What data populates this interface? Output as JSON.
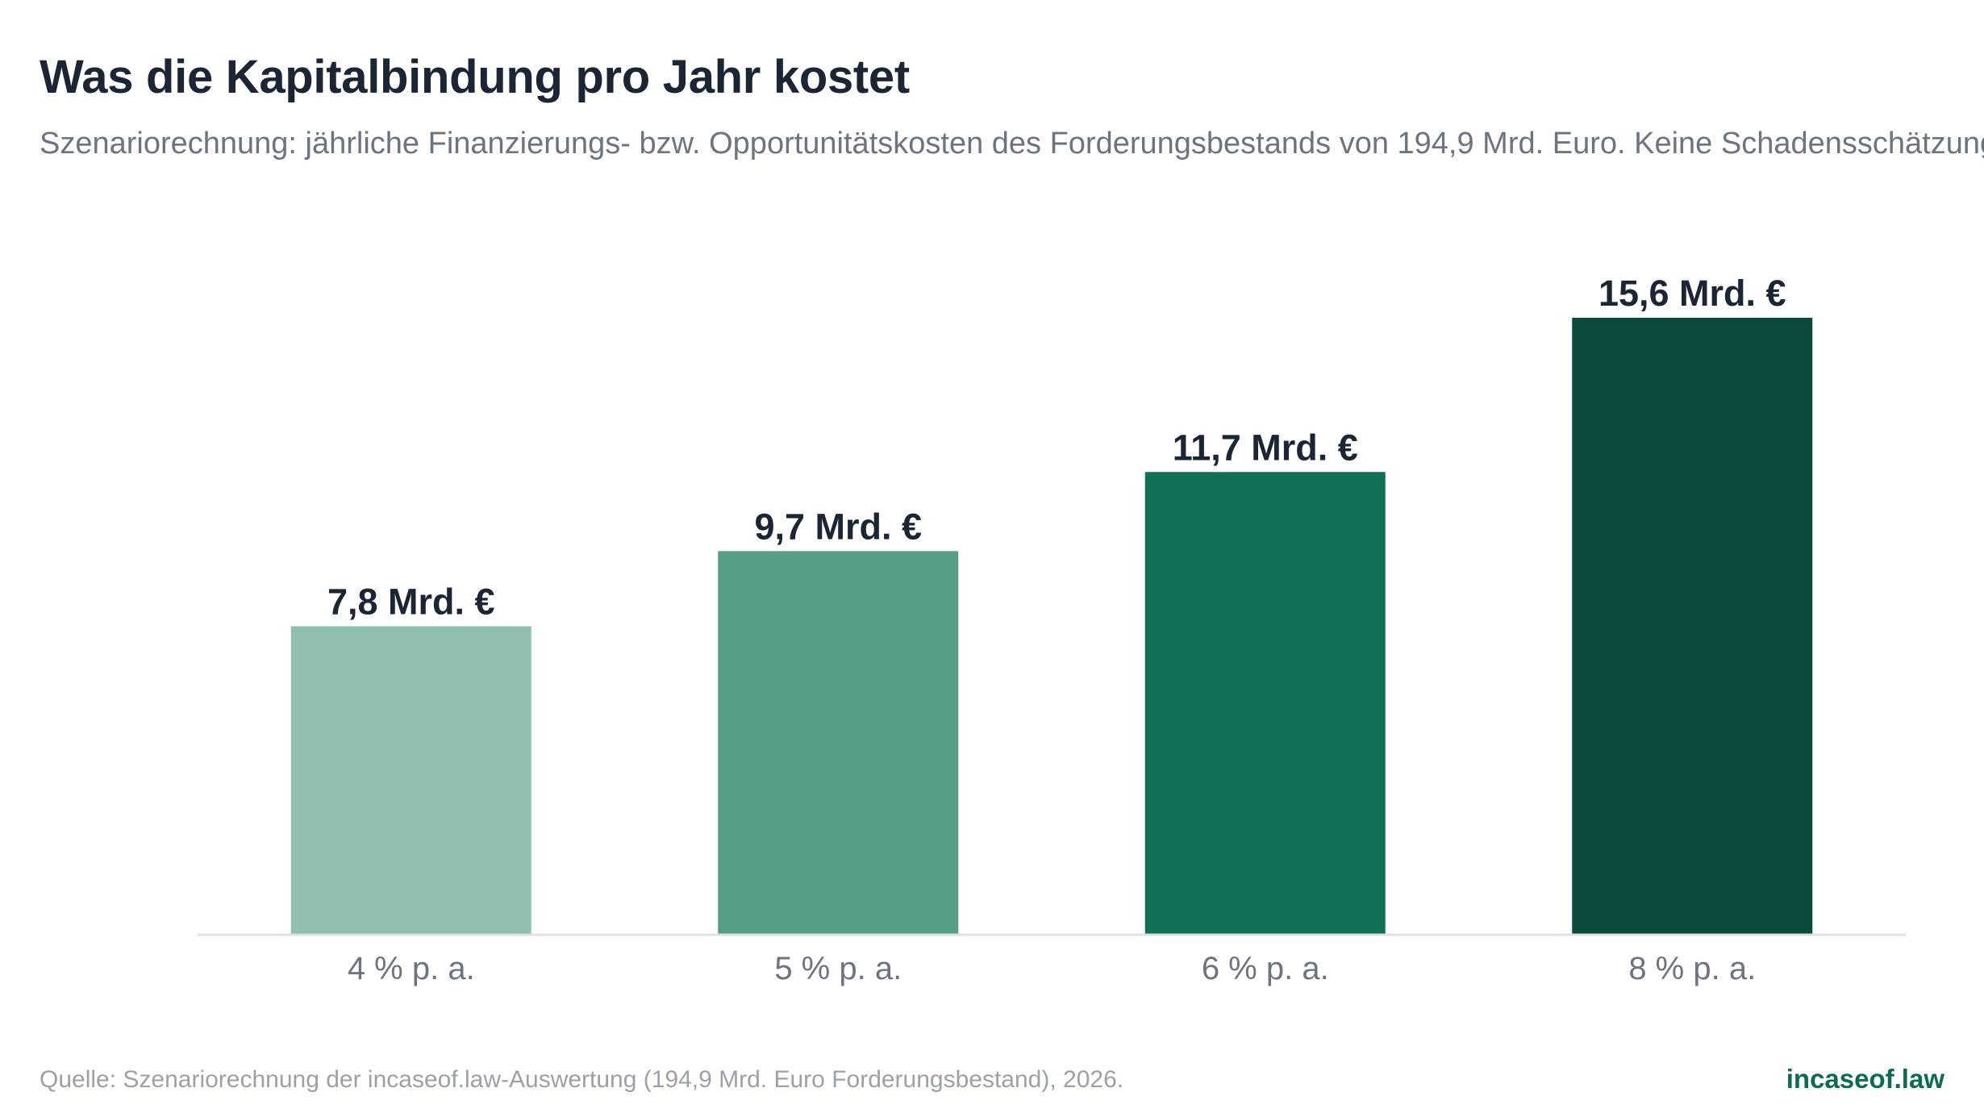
{
  "title": "Was die Kapitalbindung pro Jahr kostet",
  "subtitle": "Szenariorechnung: jährliche Finanzierungs- bzw. Opportunitätskosten des Forderungsbestands von 194,9 Mrd. Euro. Keine Schadensschätzung.",
  "source": "Quelle: Szenariorechnung der incaseof.law-Auswertung (194,9 Mrd. Euro Forderungsbestand), 2026.",
  "brand": "incaseof.law",
  "chart_data": {
    "type": "bar",
    "categories": [
      "4 % p. a.",
      "5 % p. a.",
      "6 % p. a.",
      "8 % p. a."
    ],
    "values": [
      7.8,
      9.7,
      11.7,
      15.6
    ],
    "data_labels": [
      "7,8 Mrd. €",
      "9,7 Mrd. €",
      "11,7 Mrd. €",
      "15,6 Mrd. €"
    ],
    "colors": [
      "#90bfaf",
      "#579e89",
      "#126e57",
      "#0b4a3d"
    ],
    "ylim": [
      0,
      15.6
    ],
    "grid": false,
    "xlabel": "",
    "ylabel": ""
  }
}
